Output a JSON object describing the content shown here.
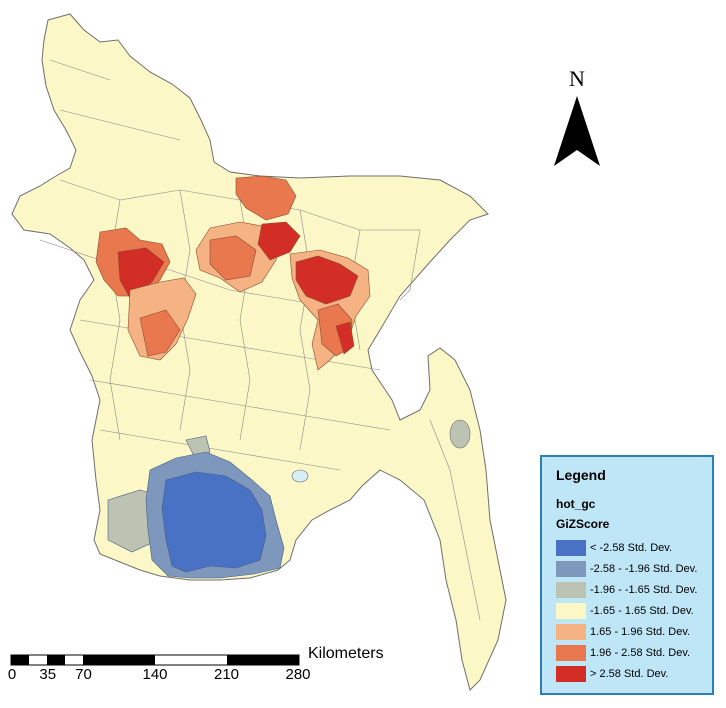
{
  "map": {
    "north_label": "N",
    "scale": {
      "unit": "Kilometers",
      "ticks": [
        "0",
        "35",
        "70",
        "140",
        "210",
        "280"
      ]
    },
    "legend": {
      "title": "Legend",
      "layer": "hot_gc",
      "field": "GiZScore",
      "classes": [
        {
          "label": "< -2.58 Std. Dev.",
          "color": "#4a72c4"
        },
        {
          "label": "-2.58 - -1.96 Std. Dev.",
          "color": "#7e98bd"
        },
        {
          "label": "-1.96 - -1.65 Std. Dev.",
          "color": "#bcc3b3"
        },
        {
          "label": "-1.65 - 1.65 Std. Dev.",
          "color": "#fbf7c6"
        },
        {
          "label": "1.65 - 1.96 Std. Dev.",
          "color": "#f5b384"
        },
        {
          "label": "1.96 - 2.58 Std. Dev.",
          "color": "#e9784e"
        },
        {
          "label": "> 2.58 Std. Dev.",
          "color": "#d32e26"
        }
      ]
    }
  }
}
